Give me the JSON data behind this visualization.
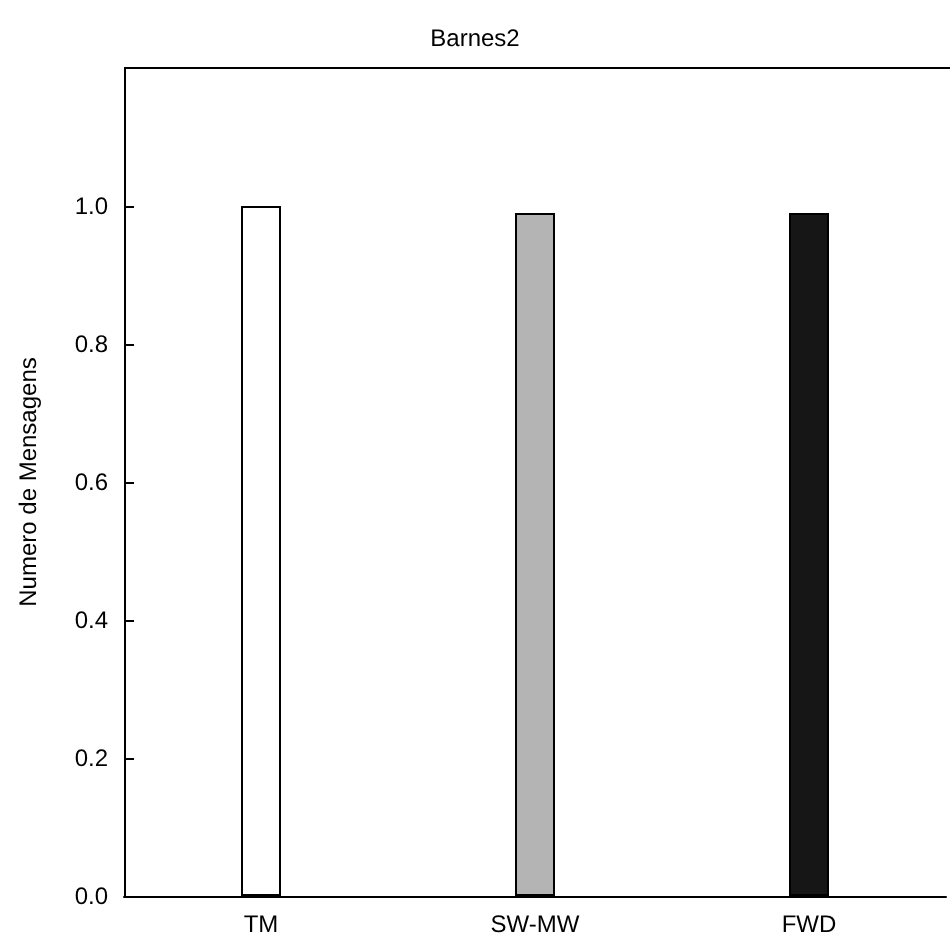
{
  "chart_data": {
    "type": "bar",
    "title": "Barnes2",
    "ylabel": "Numero de Mensagens",
    "categories": [
      "TM",
      "SW-MW",
      "FWD"
    ],
    "values": [
      1.0,
      0.99,
      0.99
    ],
    "colors": [
      "#ffffff",
      "#b4b4b4",
      "#161616"
    ],
    "ylim": [
      0,
      1.2
    ],
    "yticks": [
      {
        "value": 0,
        "label": "0.0"
      },
      0.2,
      0.4,
      0.6,
      0.8,
      {
        "value": 1,
        "label": "1.0"
      }
    ],
    "grid": false
  }
}
